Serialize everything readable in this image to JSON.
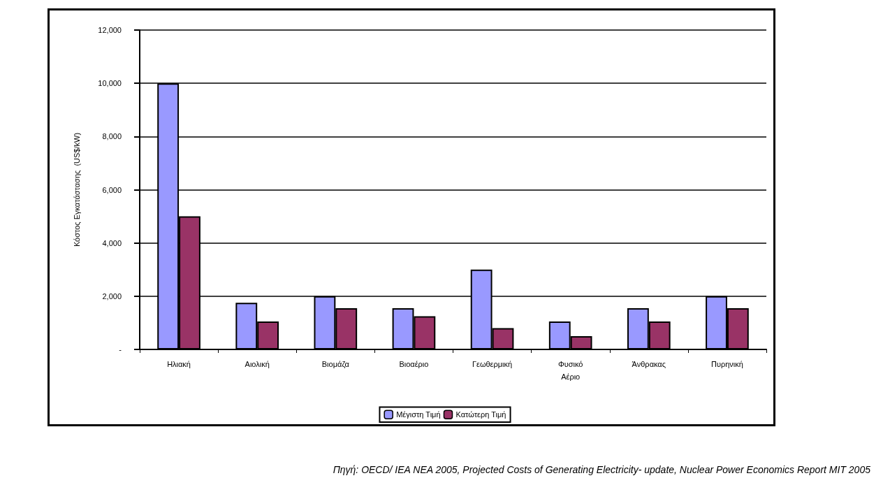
{
  "chart_data": {
    "type": "bar",
    "ylabel": "Κόστος Εγκατάστασης  (US$/kW)",
    "categories": [
      "Ηλιακή",
      "Αιολική",
      "Βιομάζα",
      "Βιοαέριο",
      "Γεωθερμική",
      "Φυσικό Αέριο",
      "Άνθρακας",
      "Πυρηνική"
    ],
    "series": [
      {
        "name": "Μέγιστη Τιμή",
        "color": "#9999ff",
        "values": [
          10000,
          1750,
          2000,
          1550,
          3000,
          1050,
          1550,
          2000
        ]
      },
      {
        "name": "Κατώτερη Τιμή",
        "color": "#993366",
        "values": [
          5000,
          1050,
          1550,
          1250,
          800,
          500,
          1050,
          1550
        ]
      }
    ],
    "ylim": [
      0,
      12000
    ],
    "yticks": [
      {
        "value": 0,
        "label": "-"
      },
      {
        "value": 2000,
        "label": "2,000"
      },
      {
        "value": 4000,
        "label": "4,000"
      },
      {
        "value": 6000,
        "label": "6,000"
      },
      {
        "value": 8000,
        "label": "8,000"
      },
      {
        "value": 10000,
        "label": "10,000"
      },
      {
        "value": 12000,
        "label": "12,000"
      }
    ],
    "grid": "y",
    "legend": "bottom",
    "annotations": [
      "Πηγή: OECD/ IEA NEA 2005, Projected Costs of Generating Electricity- update, Nuclear Power Economics Report MIT 2005"
    ]
  }
}
